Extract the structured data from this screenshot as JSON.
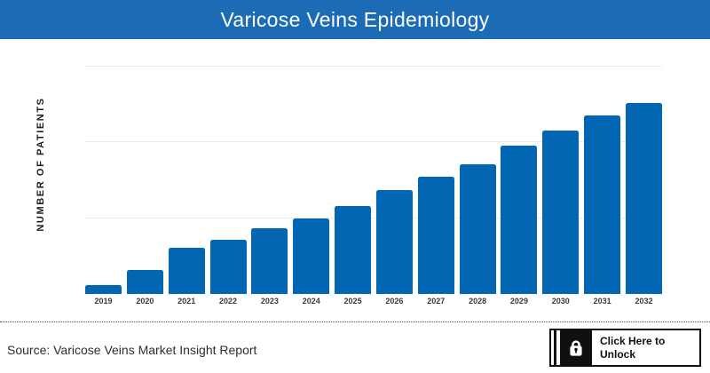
{
  "header": {
    "title": "Varicose Veins Epidemiology",
    "background_color": "#1B6CB5",
    "text_color": "#FFFFFF"
  },
  "chart_data": {
    "type": "bar",
    "title": "Varicose Veins Epidemiology",
    "xlabel": "",
    "ylabel": "NUMBER OF PATIENTS",
    "categories": [
      "2019",
      "2020",
      "2021",
      "2022",
      "2023",
      "2024",
      "2025",
      "2026",
      "2027",
      "2028",
      "2029",
      "2030",
      "2031",
      "2032"
    ],
    "values": [
      4.7,
      12.6,
      24.2,
      28.4,
      34.4,
      39.5,
      46.0,
      54.4,
      61.4,
      67.9,
      77.7,
      85.6,
      93.5,
      100
    ],
    "values_unit": "relative scale (100 = 2032 bar); y-axis shows no numeric tick labels",
    "ylim": [
      0,
      126
    ],
    "grid": "3 light horizontal gridlines, evenly spaced, no y tick labels",
    "legend": "none",
    "bar_color": "#0366B2",
    "gridline_color": "#EBEBEB"
  },
  "footer": {
    "source_text": "Source: Varicose Veins Market Insight Report",
    "unlock_button": {
      "line1": "Click Here to",
      "line2": "Unlock",
      "icon": "lock-icon"
    }
  },
  "colors": {
    "header_blue": "#1B6CB5",
    "bar_blue": "#0366B2",
    "gridline_gray": "#EBEBEB",
    "button_black": "#101010"
  }
}
